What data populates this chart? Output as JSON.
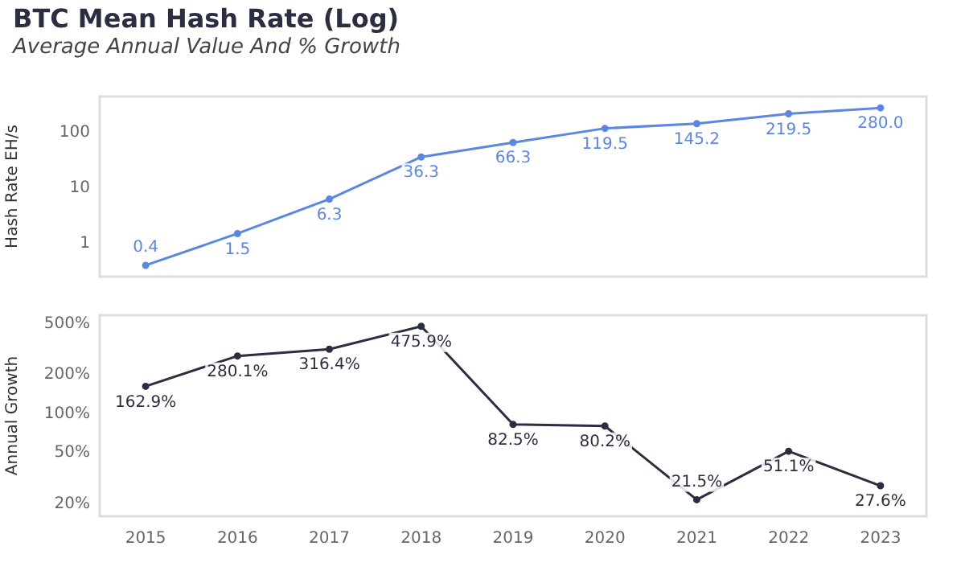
{
  "chart_data": [
    {
      "type": "line",
      "title": "BTC Mean Hash Rate (Log)",
      "subtitle": "Average Annual Value And % Growth",
      "ylabel": "Hash Rate EH/s",
      "categories": [
        "2015",
        "2016",
        "2017",
        "2018",
        "2019",
        "2020",
        "2021",
        "2022",
        "2023"
      ],
      "series": [
        {
          "color": "#5b86e5",
          "values": [
            0.4,
            1.5,
            6.3,
            36.3,
            66.3,
            119.5,
            145.2,
            219.5,
            280.0
          ],
          "value_labels": [
            "0.4",
            "1.5",
            "6.3",
            "36.3",
            "66.3",
            "119.5",
            "145.2",
            "219.5",
            "280.0"
          ]
        }
      ],
      "log": "y",
      "ylim": [
        0.25,
        450
      ],
      "yticks": [
        1,
        10,
        100
      ],
      "tick_labels": "y",
      "marker": "circle",
      "grid": false
    },
    {
      "type": "line",
      "ylabel": "Annual Growth",
      "categories": [
        "2015",
        "2016",
        "2017",
        "2018",
        "2019",
        "2020",
        "2021",
        "2022",
        "2023"
      ],
      "series": [
        {
          "color": "#2b2d42",
          "values": [
            162.9,
            280.1,
            316.4,
            475.9,
            82.5,
            80.2,
            21.5,
            51.1,
            27.6
          ],
          "value_labels": [
            "162.9%",
            "280.1%",
            "316.4%",
            "475.9%",
            "82.5%",
            "80.2%",
            "21.5%",
            "51.1%",
            "27.6%"
          ]
        }
      ],
      "log": "y",
      "ylim": [
        16,
        580
      ],
      "yticks": [
        {
          "value": 20,
          "label": "20%"
        },
        {
          "value": 50,
          "label": "50%"
        },
        {
          "value": 100,
          "label": "100%"
        },
        {
          "value": 200,
          "label": "200%"
        },
        {
          "value": 500,
          "label": "500%"
        }
      ],
      "marker": "circle",
      "grid": false
    }
  ]
}
